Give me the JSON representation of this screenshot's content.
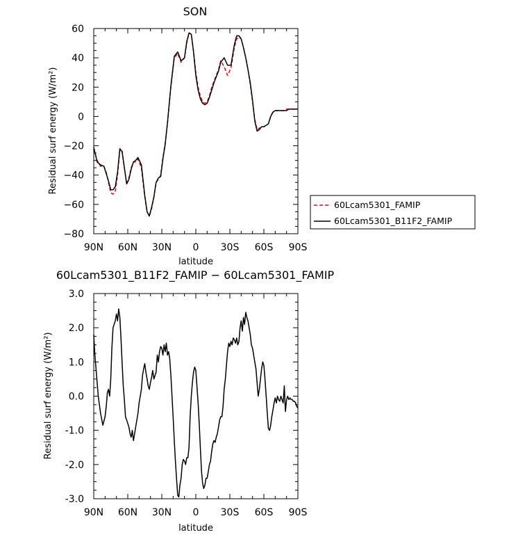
{
  "chart_data": [
    {
      "type": "line",
      "title": "SON",
      "xlabel": "latitude",
      "ylabel": "Residual surf energy  (W/m²)",
      "x_ticks": [
        "90N",
        "60N",
        "30N",
        "0",
        "30S",
        "60S",
        "90S"
      ],
      "x_tick_values": [
        90,
        60,
        30,
        0,
        -30,
        -60,
        -90
      ],
      "xlim": [
        90,
        -90
      ],
      "ylim": [
        -80,
        60
      ],
      "y_ticks": [
        "−80",
        "−60",
        "−40",
        "−20",
        "0",
        "20",
        "40",
        "60"
      ],
      "y_tick_values": [
        -80,
        -60,
        -40,
        -20,
        0,
        20,
        40,
        60
      ],
      "legend_position": "right",
      "series": [
        {
          "name": "60Lcam5301_FAMIP",
          "color": "#ff0000",
          "dash": "dashed",
          "x": [
            90,
            87,
            84,
            81,
            79,
            77,
            75,
            73,
            71,
            69,
            67,
            65,
            63,
            61,
            59,
            57,
            55,
            53,
            51,
            48,
            45,
            43,
            41,
            39,
            37,
            35,
            33,
            31,
            29,
            27,
            25,
            22,
            19,
            16,
            13,
            10,
            8,
            6,
            4,
            2,
            0,
            -2,
            -4,
            -6,
            -8,
            -10,
            -12,
            -14,
            -16,
            -18,
            -20,
            -22,
            -25,
            -28,
            -31,
            -34,
            -36,
            -38,
            -40,
            -42,
            -44,
            -46,
            -48,
            -50,
            -52,
            -54,
            -56,
            -58,
            -60,
            -62,
            -64,
            -66,
            -68,
            -70,
            -72,
            -74,
            -76,
            -78,
            -80,
            -82,
            -84,
            -86,
            -88,
            -90
          ],
          "y": [
            -22,
            -30,
            -34,
            -34,
            -38,
            -45,
            -52,
            -53,
            -51,
            -40,
            -23,
            -23,
            -35,
            -46,
            -42,
            -35,
            -31,
            -31,
            -29,
            -35,
            -55,
            -65,
            -68,
            -63,
            -55,
            -45,
            -43,
            -40,
            -28,
            -18,
            -5,
            20,
            40,
            43,
            37,
            40,
            50,
            57,
            56,
            45,
            30,
            20,
            14,
            10,
            9,
            10,
            14,
            20,
            24,
            28,
            32,
            38,
            34,
            28,
            33,
            47,
            53,
            54,
            53,
            47,
            40,
            32,
            22,
            10,
            -2,
            -9,
            -8,
            -7,
            -7,
            -6,
            -5,
            0,
            3,
            4,
            4,
            4,
            4,
            4,
            5,
            5,
            5,
            5,
            5,
            5
          ]
        },
        {
          "name": "60Lcam5301_B11F2_FAMIP",
          "color": "#000000",
          "dash": "solid",
          "x": [
            90,
            87,
            84,
            81,
            79,
            77,
            75,
            73,
            71,
            69,
            67,
            65,
            63,
            61,
            59,
            57,
            55,
            53,
            51,
            48,
            45,
            43,
            41,
            39,
            37,
            35,
            33,
            31,
            29,
            27,
            25,
            22,
            19,
            16,
            13,
            10,
            8,
            6,
            4,
            2,
            0,
            -2,
            -4,
            -6,
            -8,
            -10,
            -12,
            -14,
            -16,
            -18,
            -20,
            -22,
            -25,
            -28,
            -31,
            -34,
            -36,
            -38,
            -40,
            -42,
            -44,
            -46,
            -48,
            -50,
            -52,
            -54,
            -56,
            -58,
            -60,
            -62,
            -64,
            -66,
            -68,
            -70,
            -72,
            -74,
            -76,
            -78,
            -80,
            -82,
            -84,
            -86,
            -88,
            -90
          ],
          "y": [
            -21,
            -31,
            -33,
            -34,
            -39,
            -44,
            -50,
            -50,
            -48,
            -38,
            -22,
            -24,
            -35,
            -46,
            -43,
            -36,
            -31,
            -30,
            -28,
            -33,
            -54,
            -65,
            -68,
            -62,
            -55,
            -45,
            -42,
            -41,
            -29,
            -19,
            -4,
            21,
            41,
            44,
            38,
            40,
            51,
            57,
            56,
            44,
            28,
            18,
            12,
            9,
            8,
            9,
            13,
            18,
            23,
            27,
            31,
            37,
            40,
            35,
            35,
            49,
            55,
            55,
            53,
            47,
            40,
            32,
            23,
            11,
            -3,
            -10,
            -9,
            -7,
            -7,
            -6,
            -5,
            0,
            3,
            4,
            4,
            4,
            4,
            4,
            4,
            5,
            5,
            5,
            5,
            5
          ]
        }
      ]
    },
    {
      "type": "line",
      "title": "60Lcam5301_B11F2_FAMIP − 60Lcam5301_FAMIP",
      "xlabel": "latitude",
      "ylabel": "Residual surf energy  (W/m²)",
      "x_ticks": [
        "90N",
        "60N",
        "30N",
        "0",
        "30S",
        "60S",
        "90S"
      ],
      "x_tick_values": [
        90,
        60,
        30,
        0,
        -30,
        -60,
        -90
      ],
      "xlim": [
        90,
        -90
      ],
      "ylim": [
        -3,
        3
      ],
      "y_ticks": [
        "-3.0",
        "-2.0",
        "-1.0",
        "0.0",
        "1.0",
        "2.0",
        "3.0"
      ],
      "y_tick_values": [
        -3,
        -2,
        -1,
        0,
        1,
        2,
        3
      ],
      "series": [
        {
          "name": "",
          "color": "#000000",
          "dash": "solid",
          "x": [
            90,
            89,
            88,
            86,
            84,
            82,
            80,
            79,
            78,
            77,
            76,
            75,
            74,
            73,
            72,
            71,
            70,
            69,
            68,
            67,
            66,
            65,
            64,
            63,
            62,
            61,
            60,
            59,
            58,
            57,
            56,
            55,
            54,
            53,
            52,
            51,
            50,
            49,
            48,
            47,
            46,
            45,
            44,
            43,
            42,
            41,
            40,
            39,
            38,
            37,
            36,
            35,
            34,
            33,
            32,
            31,
            30,
            29,
            28,
            27,
            26,
            25,
            24,
            23,
            22,
            21,
            20,
            19,
            18,
            17,
            16,
            15,
            14,
            13,
            12,
            11,
            10,
            9,
            8,
            7,
            6,
            5,
            4,
            3,
            2,
            1,
            0,
            -1,
            -2,
            -3,
            -4,
            -5,
            -6,
            -7,
            -8,
            -9,
            -10,
            -11,
            -12,
            -13,
            -14,
            -15,
            -16,
            -17,
            -18,
            -19,
            -20,
            -21,
            -22,
            -23,
            -24,
            -25,
            -26,
            -27,
            -28,
            -29,
            -30,
            -31,
            -32,
            -33,
            -34,
            -35,
            -36,
            -37,
            -38,
            -39,
            -40,
            -41,
            -42,
            -43,
            -44,
            -45,
            -46,
            -47,
            -48,
            -49,
            -50,
            -51,
            -52,
            -53,
            -54,
            -55,
            -56,
            -57,
            -58,
            -59,
            -60,
            -61,
            -62,
            -63,
            -64,
            -65,
            -66,
            -67,
            -68,
            -69,
            -70,
            -71,
            -72,
            -73,
            -74,
            -75,
            -76,
            -77,
            -78,
            -79,
            -80,
            -81,
            -82,
            -83,
            -84,
            -85,
            -86,
            -87,
            -88,
            -89,
            -90
          ],
          "y": [
            1.8,
            1.2,
            0.8,
            0.0,
            -0.5,
            -0.85,
            -0.6,
            -0.3,
            0.1,
            0.2,
            0.0,
            0.5,
            1.4,
            2.0,
            2.1,
            2.2,
            2.4,
            2.2,
            2.55,
            2.3,
            1.7,
            1.0,
            0.3,
            -0.1,
            -0.6,
            -0.7,
            -0.8,
            -0.9,
            -1.1,
            -1.2,
            -1.0,
            -1.3,
            -1.1,
            -0.9,
            -0.7,
            -0.5,
            -0.2,
            0.0,
            0.2,
            0.6,
            0.8,
            0.95,
            0.7,
            0.5,
            0.3,
            0.2,
            0.4,
            0.55,
            0.75,
            0.5,
            0.6,
            0.7,
            1.2,
            1.0,
            1.3,
            1.45,
            1.4,
            1.2,
            1.5,
            1.3,
            1.55,
            1.2,
            1.3,
            1.1,
            0.6,
            0.0,
            -0.6,
            -1.3,
            -1.9,
            -2.4,
            -2.9,
            -2.95,
            -2.6,
            -2.4,
            -2.0,
            -1.85,
            -1.9,
            -2.0,
            -1.8,
            -1.8,
            -1.5,
            -0.6,
            0.0,
            0.4,
            0.7,
            0.85,
            0.75,
            0.3,
            -0.2,
            -0.8,
            -1.5,
            -2.2,
            -2.55,
            -2.7,
            -2.6,
            -2.4,
            -2.4,
            -2.2,
            -2.0,
            -1.9,
            -1.6,
            -1.4,
            -1.3,
            -1.35,
            -1.2,
            -1.1,
            -0.9,
            -0.7,
            -0.6,
            -0.6,
            -0.3,
            0.2,
            0.5,
            0.9,
            1.3,
            1.55,
            1.45,
            1.6,
            1.5,
            1.7,
            1.65,
            1.55,
            1.7,
            1.5,
            1.6,
            2.0,
            2.2,
            1.9,
            2.3,
            2.1,
            2.45,
            2.3,
            2.2,
            2.0,
            1.8,
            1.5,
            1.4,
            1.2,
            1.0,
            0.8,
            0.4,
            0.0,
            0.2,
            0.5,
            0.8,
            1.0,
            0.9,
            0.5,
            0.0,
            -0.5,
            -0.95,
            -1.0,
            -0.85,
            -0.6,
            -0.4,
            -0.2,
            -0.05,
            -0.2,
            0.0,
            -0.1,
            -0.15,
            0.0,
            -0.1,
            -0.2,
            0.3,
            -0.45,
            -0.1,
            0.0,
            -0.1,
            -0.05,
            -0.1,
            -0.1,
            -0.15,
            -0.15,
            -0.2,
            -0.3,
            -0.35
          ]
        }
      ]
    }
  ]
}
